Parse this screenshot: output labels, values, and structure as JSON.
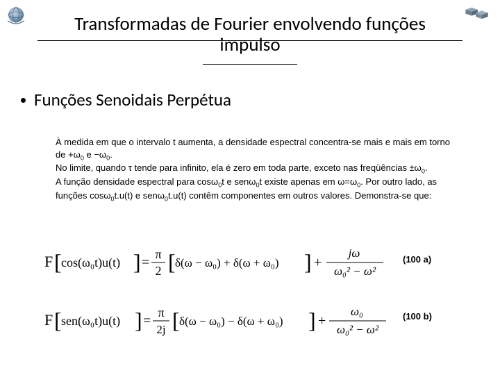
{
  "title_line1": "Transformadas de Fourier envolvendo funções",
  "title_line2": "impulso",
  "bullet1": "Funções Senoidais Perpétua",
  "paragraph_html": "À medida em que o intervalo t aumenta, a densidade espectral concentra-se mais e mais em torno de +ω<sub>0</sub> e −ω<sub>0</sub>.<br>No limite, quando τ tende para infinito, ela é zero em toda parte, exceto nas freqüências ±ω<sub>0</sub>.<br>A função densidade espectral para cosω<sub>0</sub>t e senω<sub>0</sub>t existe apenas em ω=ω<sub>0</sub>. Por outro lado, as funções cosω<sub>0</sub>t.u(t) e senω<sub>0</sub>t.u(t) contêm componentes em outros valores. Demonstra-se que:",
  "eq_label_a": "(100 a)",
  "eq_label_b": "(100 b)",
  "eq_a": {
    "func_label": "F",
    "inner": "cos(ω₀t)u(t)",
    "first_coef_num": "π",
    "first_coef_den": "2",
    "delta1": "δ(ω − ω₀) + δ(ω + ω₀)",
    "plus": "+",
    "second_num": "jω",
    "second_den": "ω₀² − ω²"
  },
  "eq_b": {
    "func_label": "F",
    "inner": "sen(ω₀t)u(t)",
    "first_coef_num": "π",
    "first_coef_den": "2j",
    "delta1": "δ(ω − ω₀) − δ(ω + ω₀)",
    "plus": "+",
    "second_num": "ω₀",
    "second_den": "ω₀² − ω²"
  },
  "colors": {
    "text": "#000000",
    "frac_line": "#000000",
    "logo_blue": "#6b8db3",
    "logo_grey": "#7a8896"
  }
}
